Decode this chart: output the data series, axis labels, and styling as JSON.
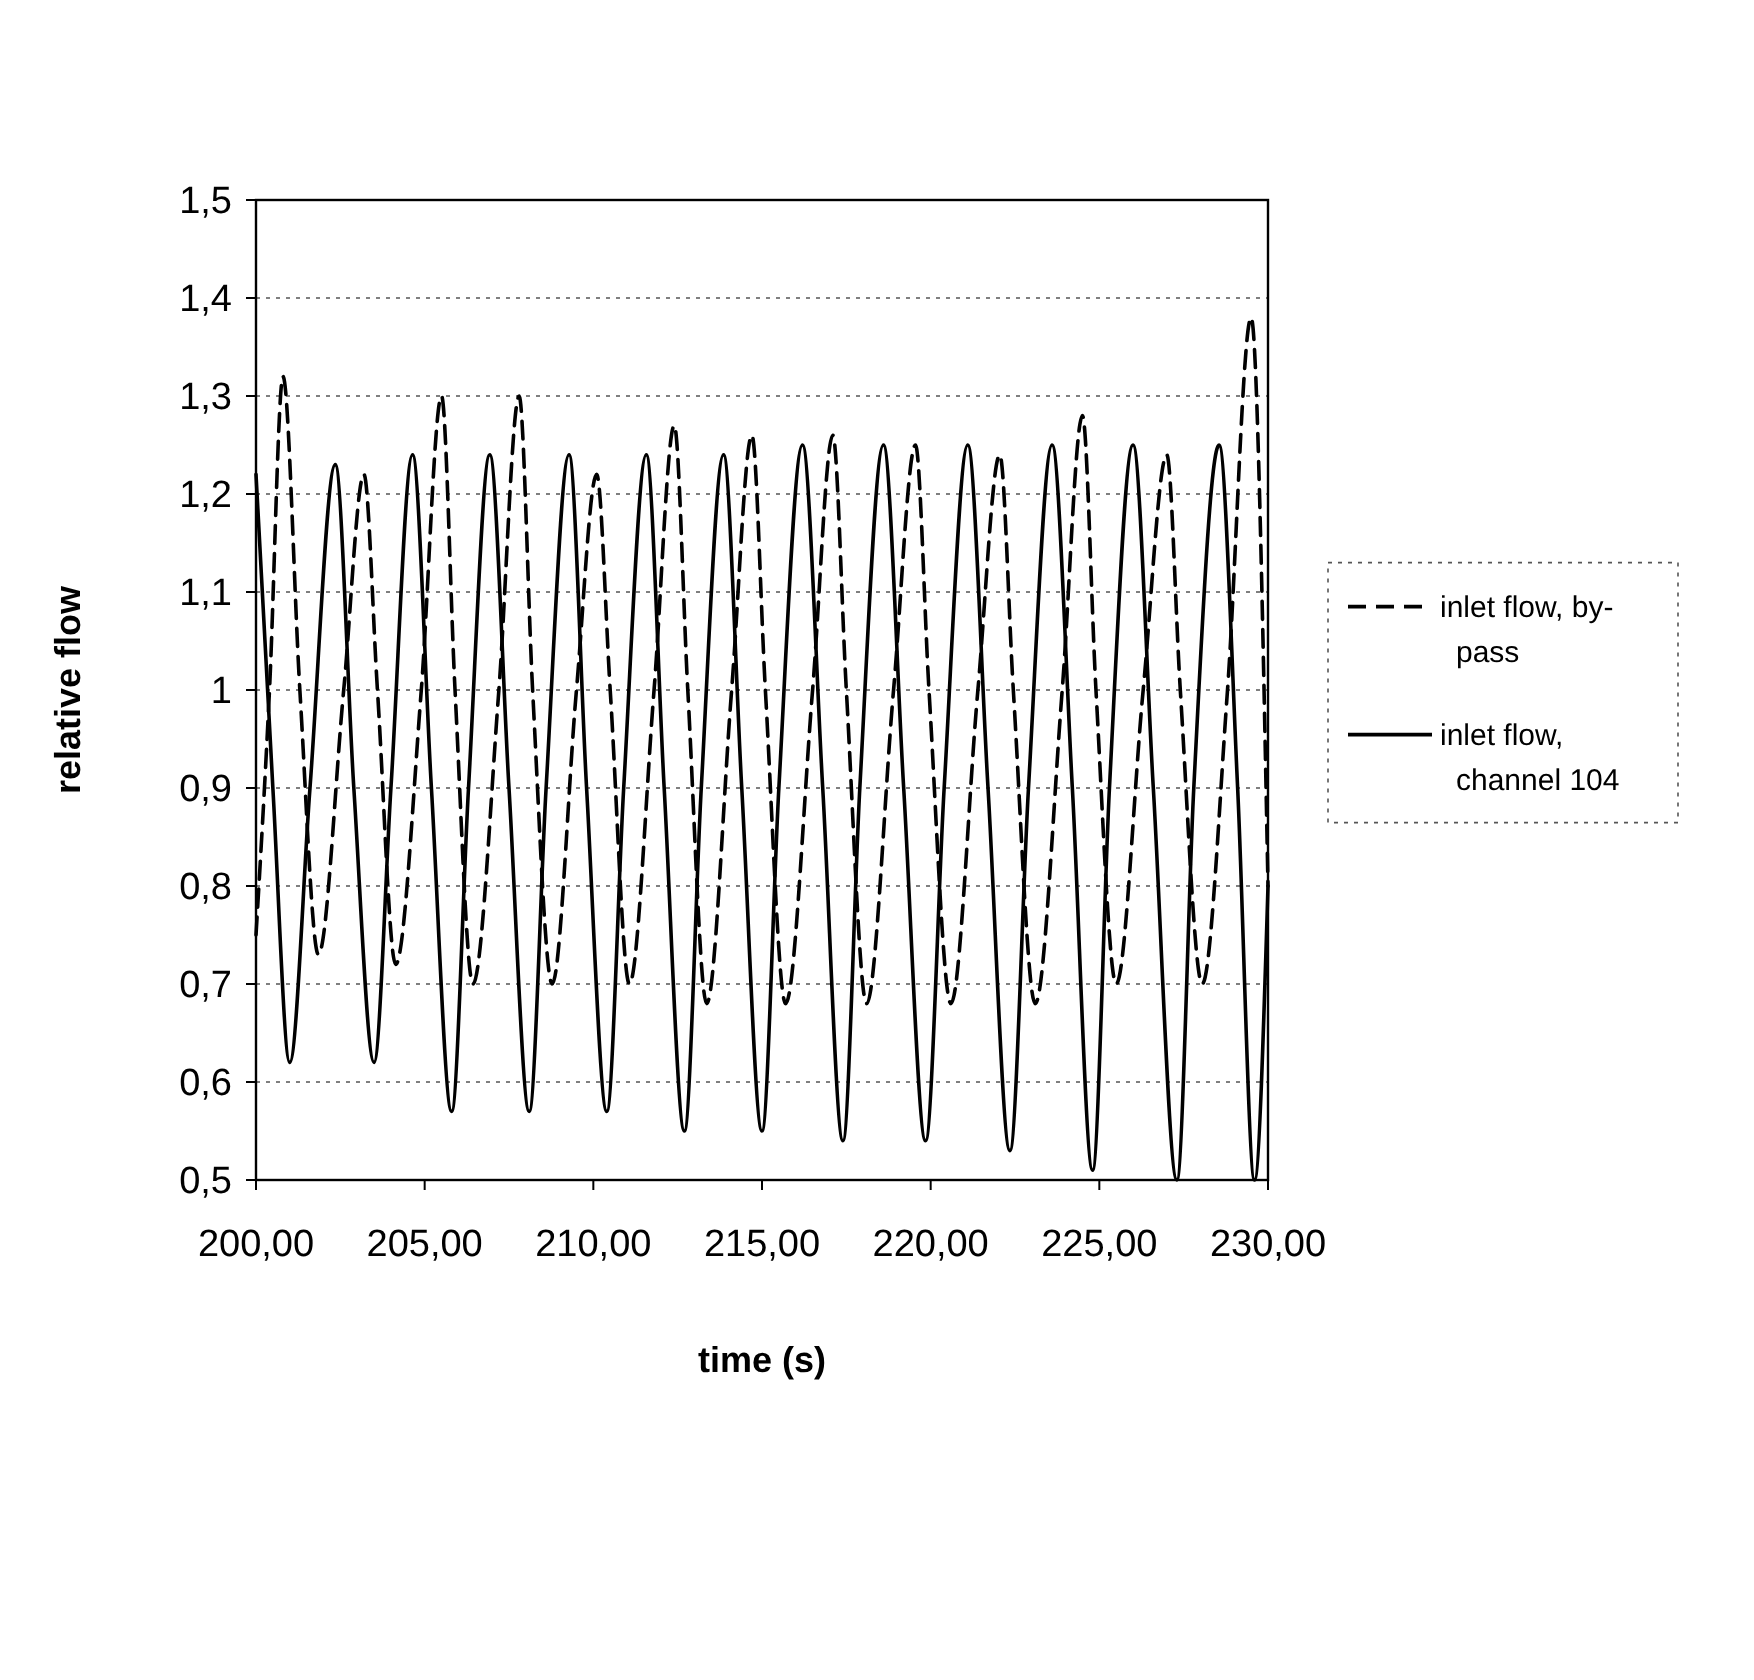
{
  "chart_data": {
    "type": "line",
    "xlabel": "time (s)",
    "ylabel": "relative flow",
    "xlim": [
      200,
      230
    ],
    "ylim": [
      0.5,
      1.5
    ],
    "xticks": [
      {
        "value": 200,
        "label": "200,00"
      },
      {
        "value": 205,
        "label": "205,00"
      },
      {
        "value": 210,
        "label": "210,00"
      },
      {
        "value": 215,
        "label": "215,00"
      },
      {
        "value": 220,
        "label": "220,00"
      },
      {
        "value": 225,
        "label": "225,00"
      },
      {
        "value": 230,
        "label": "230,00"
      }
    ],
    "yticks": [
      {
        "value": 0.5,
        "label": "0,5"
      },
      {
        "value": 0.6,
        "label": "0,6"
      },
      {
        "value": 0.7,
        "label": "0,7"
      },
      {
        "value": 0.8,
        "label": "0,8"
      },
      {
        "value": 0.9,
        "label": "0,9"
      },
      1,
      {
        "value": 1.1,
        "label": "1,1"
      },
      {
        "value": 1.2,
        "label": "1,2"
      },
      {
        "value": 1.3,
        "label": "1,3"
      },
      {
        "value": 1.4,
        "label": "1,4"
      },
      {
        "value": 1.5,
        "label": "1,5"
      }
    ],
    "grid": "y",
    "legend": "right",
    "marker": "none",
    "series": [
      {
        "name": "inlet flow, by-pass",
        "color": "#000000",
        "line_style": "dashed",
        "x": [
          200,
          200.4,
          200.8,
          201.3,
          201.85,
          202.6,
          203.2,
          203.6,
          204.14,
          204.9,
          205.5,
          205.9,
          206.43,
          207.2,
          207.8,
          208.2,
          208.78,
          209.5,
          210.1,
          210.5,
          211.07,
          211.8,
          212.4,
          212.8,
          213.36,
          214.1,
          214.7,
          215.1,
          215.7,
          216.5,
          217.1,
          217.5,
          218.1,
          218.9,
          219.55,
          219.95,
          220.6,
          221.4,
          222.05,
          222.45,
          223.1,
          223.9,
          224.5,
          224.9,
          225.5,
          226.3,
          227,
          227.4,
          228.05,
          228.8,
          229.5,
          230
        ],
        "values": [
          0.75,
          1.0,
          1.32,
          1.0,
          0.73,
          1.0,
          1.22,
          1.0,
          0.72,
          1.0,
          1.3,
          1.0,
          0.7,
          1.0,
          1.3,
          1.0,
          0.7,
          1.0,
          1.22,
          1.0,
          0.7,
          1.0,
          1.27,
          1.0,
          0.68,
          1.0,
          1.26,
          1.0,
          0.68,
          1.0,
          1.26,
          1.0,
          0.68,
          1.0,
          1.25,
          1.0,
          0.68,
          1.0,
          1.24,
          1.0,
          0.68,
          1.0,
          1.28,
          1.0,
          0.7,
          1.0,
          1.24,
          1.0,
          0.7,
          1.0,
          1.38,
          0.8
        ]
      },
      {
        "name": "inlet flow, channel 104",
        "color": "#000000",
        "line_style": "solid",
        "x": [
          200,
          200.5,
          201,
          201.6,
          202.35,
          202.9,
          203.5,
          204,
          204.64,
          205.2,
          205.8,
          206.3,
          206.93,
          207.5,
          208.1,
          208.6,
          209.28,
          209.8,
          210.4,
          210.9,
          211.57,
          212.1,
          212.7,
          213.2,
          213.86,
          214.4,
          215,
          215.5,
          216.2,
          216.8,
          217.4,
          217.9,
          218.6,
          219.2,
          219.85,
          220.4,
          221.1,
          221.7,
          222.35,
          222.9,
          223.6,
          224.2,
          224.8,
          225.3,
          226,
          226.6,
          227.3,
          227.8,
          228.55,
          229.1,
          229.6,
          230
        ],
        "values": [
          1.22,
          0.9,
          0.62,
          0.9,
          1.23,
          0.9,
          0.62,
          0.9,
          1.24,
          0.9,
          0.57,
          0.9,
          1.24,
          0.9,
          0.57,
          0.9,
          1.24,
          0.9,
          0.57,
          0.9,
          1.24,
          0.9,
          0.55,
          0.9,
          1.24,
          0.9,
          0.55,
          0.9,
          1.25,
          0.9,
          0.54,
          0.9,
          1.25,
          0.9,
          0.54,
          0.9,
          1.25,
          0.9,
          0.53,
          0.9,
          1.25,
          0.9,
          0.51,
          0.9,
          1.25,
          0.9,
          0.5,
          0.9,
          1.25,
          0.9,
          0.5,
          0.8
        ]
      }
    ]
  }
}
